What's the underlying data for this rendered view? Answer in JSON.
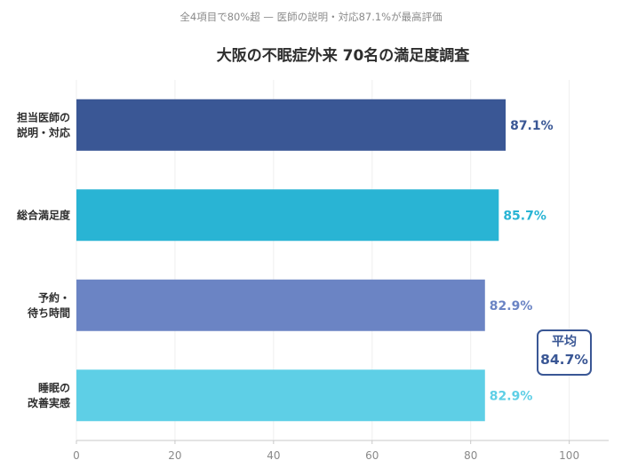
{
  "header": {
    "subtitle": "全4項目で80%超 — 医師の説明・対応87.1%が最高評価",
    "title": "大阪の不眠症外来 70名の満足度調査"
  },
  "average": {
    "label": "平均",
    "value_text": "84.7%"
  },
  "chart_data": {
    "type": "bar",
    "orientation": "horizontal",
    "categories": [
      [
        "担当医師の",
        "説明・対応"
      ],
      [
        "総合満足度"
      ],
      [
        "予約・",
        "待ち時間"
      ],
      [
        "睡眠の",
        "改善実感"
      ]
    ],
    "values": [
      87.1,
      85.7,
      82.9,
      82.9
    ],
    "value_labels": [
      "87.1%",
      "85.7%",
      "82.9%",
      "82.9%"
    ],
    "colors": [
      "#3a5795",
      "#29b4d4",
      "#6b84c4",
      "#5ecfe6"
    ],
    "xlim": [
      0,
      108
    ],
    "xticks": [
      0,
      20,
      40,
      60,
      80,
      100
    ],
    "xlabel": "",
    "ylabel": "",
    "grid": true
  }
}
